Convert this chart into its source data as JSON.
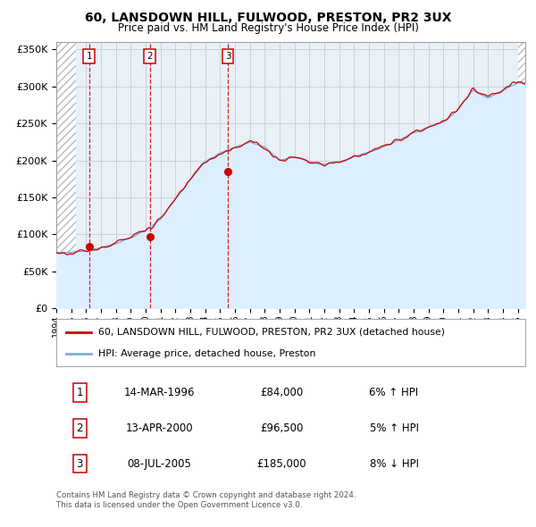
{
  "title1": "60, LANSDOWN HILL, FULWOOD, PRESTON, PR2 3UX",
  "title2": "Price paid vs. HM Land Registry's House Price Index (HPI)",
  "ylim": [
    0,
    360000
  ],
  "yticks": [
    0,
    50000,
    100000,
    150000,
    200000,
    250000,
    300000,
    350000
  ],
  "ytick_labels": [
    "£0",
    "£50K",
    "£100K",
    "£150K",
    "£200K",
    "£250K",
    "£300K",
    "£350K"
  ],
  "xlim_start": 1994.0,
  "xlim_end": 2025.5,
  "hatch_left_end": 1995.3,
  "hatch_right_start": 2025.0,
  "sales": [
    {
      "date_num": 1996.2,
      "price": 84000,
      "label": "1"
    },
    {
      "date_num": 2000.28,
      "price": 96500,
      "label": "2"
    },
    {
      "date_num": 2005.52,
      "price": 185000,
      "label": "3"
    }
  ],
  "sale_labels_info": [
    {
      "n": "1",
      "date": "14-MAR-1996",
      "price": "£84,000",
      "hpi_pct": "6%",
      "hpi_dir": "↑"
    },
    {
      "n": "2",
      "date": "13-APR-2000",
      "price": "£96,500",
      "hpi_pct": "5%",
      "hpi_dir": "↑"
    },
    {
      "n": "3",
      "date": "08-JUL-2005",
      "price": "£185,000",
      "hpi_pct": "8%",
      "hpi_dir": "↓"
    }
  ],
  "legend_line1": "60, LANSDOWN HILL, FULWOOD, PRESTON, PR2 3UX (detached house)",
  "legend_line2": "HPI: Average price, detached house, Preston",
  "footer1": "Contains HM Land Registry data © Crown copyright and database right 2024.",
  "footer2": "This data is licensed under the Open Government Licence v3.0.",
  "property_color": "#cc0000",
  "hpi_color": "#7bafd4",
  "hpi_fill_color": "#ddeeff",
  "grid_color": "#cccccc",
  "dashed_line_color": "#cc0000",
  "hatch_color": "#bbbbbb",
  "bg_chart": "#e8f0f8",
  "bg_fig": "#ffffff",
  "hpi_keypoints": [
    [
      1994.0,
      75000
    ],
    [
      1995.0,
      76000
    ],
    [
      1996.0,
      78000
    ],
    [
      1997.0,
      82000
    ],
    [
      1998.0,
      88000
    ],
    [
      1999.0,
      95000
    ],
    [
      2000.0,
      105000
    ],
    [
      2001.0,
      120000
    ],
    [
      2002.0,
      148000
    ],
    [
      2003.0,
      175000
    ],
    [
      2004.0,
      198000
    ],
    [
      2005.0,
      210000
    ],
    [
      2006.0,
      218000
    ],
    [
      2007.0,
      225000
    ],
    [
      2008.0,
      218000
    ],
    [
      2009.0,
      200000
    ],
    [
      2010.0,
      205000
    ],
    [
      2011.0,
      198000
    ],
    [
      2012.0,
      195000
    ],
    [
      2013.0,
      198000
    ],
    [
      2014.0,
      205000
    ],
    [
      2015.0,
      212000
    ],
    [
      2016.0,
      218000
    ],
    [
      2017.0,
      228000
    ],
    [
      2018.0,
      238000
    ],
    [
      2019.0,
      245000
    ],
    [
      2020.0,
      252000
    ],
    [
      2021.0,
      270000
    ],
    [
      2022.0,
      295000
    ],
    [
      2023.0,
      285000
    ],
    [
      2024.0,
      295000
    ],
    [
      2025.0,
      305000
    ]
  ]
}
